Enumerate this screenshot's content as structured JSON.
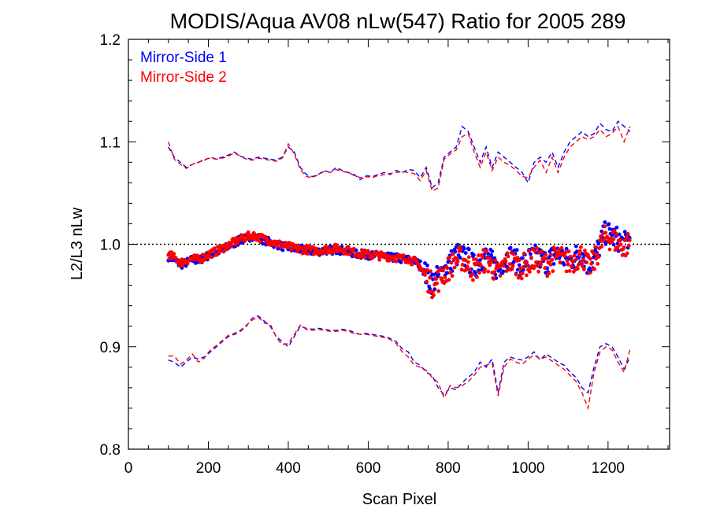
{
  "chart_data": {
    "type": "scatter",
    "title": "MODIS/Aqua AV08 nLw(547) Ratio for 2005 289",
    "xlabel": "Scan Pixel",
    "ylabel": "L2/L3 nLw",
    "xlim": [
      0,
      1354
    ],
    "ylim": [
      0.8,
      1.2
    ],
    "x_ticks": [
      0,
      200,
      400,
      600,
      800,
      1000,
      1200
    ],
    "x_tick_labels": [
      "0",
      "200",
      "400",
      "600",
      "800",
      "1000",
      "1200"
    ],
    "y_ticks": [
      0.8,
      0.9,
      1.0,
      1.1,
      1.2
    ],
    "y_tick_labels": [
      "0.8",
      "0.9",
      "1.0",
      "1.1",
      "1.2"
    ],
    "reference_line": 1.0,
    "legend_position": "top-left",
    "grid": false,
    "series": [
      {
        "name": "Mirror-Side 1",
        "color": "#0000ff",
        "x": [
          100,
          115,
          130,
          145,
          160,
          175,
          190,
          205,
          220,
          235,
          250,
          265,
          280,
          295,
          310,
          325,
          340,
          355,
          370,
          385,
          400,
          415,
          430,
          445,
          460,
          475,
          490,
          505,
          520,
          535,
          550,
          565,
          580,
          595,
          610,
          625,
          640,
          655,
          670,
          685,
          700,
          715,
          730,
          745,
          760,
          775,
          790,
          805,
          820,
          835,
          850,
          865,
          880,
          895,
          910,
          925,
          940,
          955,
          970,
          985,
          1000,
          1015,
          1030,
          1045,
          1060,
          1075,
          1090,
          1105,
          1120,
          1135,
          1150,
          1165,
          1180,
          1195,
          1210,
          1225,
          1240,
          1255
        ],
        "mean": [
          0.988,
          0.985,
          0.98,
          0.982,
          0.985,
          0.984,
          0.987,
          0.99,
          0.992,
          0.995,
          0.998,
          1.001,
          1.004,
          1.006,
          1.008,
          1.006,
          1.004,
          1.002,
          1.0,
          0.998,
          0.997,
          0.995,
          0.995,
          0.994,
          0.993,
          0.993,
          0.994,
          0.994,
          0.995,
          0.994,
          0.993,
          0.991,
          0.99,
          0.99,
          0.989,
          0.989,
          0.988,
          0.987,
          0.987,
          0.985,
          0.985,
          0.984,
          0.98,
          0.97,
          0.963,
          0.968,
          0.975,
          0.982,
          0.99,
          0.988,
          0.985,
          0.978,
          0.985,
          0.988,
          0.982,
          0.975,
          0.985,
          0.988,
          0.983,
          0.98,
          0.985,
          0.988,
          0.986,
          0.983,
          0.987,
          0.99,
          0.986,
          0.984,
          0.989,
          0.992,
          0.98,
          0.985,
          1.0,
          1.012,
          1.008,
          1.005,
          1.0,
          1.005
        ],
        "upper": [
          1.095,
          1.085,
          1.08,
          1.075,
          1.078,
          1.08,
          1.082,
          1.085,
          1.083,
          1.085,
          1.087,
          1.09,
          1.086,
          1.084,
          1.083,
          1.085,
          1.084,
          1.083,
          1.082,
          1.085,
          1.095,
          1.09,
          1.075,
          1.068,
          1.066,
          1.068,
          1.072,
          1.07,
          1.075,
          1.072,
          1.07,
          1.068,
          1.063,
          1.067,
          1.066,
          1.068,
          1.07,
          1.068,
          1.072,
          1.07,
          1.073,
          1.072,
          1.065,
          1.075,
          1.055,
          1.06,
          1.085,
          1.09,
          1.095,
          1.115,
          1.11,
          1.095,
          1.08,
          1.095,
          1.075,
          1.09,
          1.085,
          1.08,
          1.075,
          1.07,
          1.06,
          1.08,
          1.085,
          1.08,
          1.09,
          1.075,
          1.09,
          1.1,
          1.105,
          1.11,
          1.105,
          1.108,
          1.118,
          1.112,
          1.11,
          1.12,
          1.115,
          1.11
        ],
        "lower": [
          0.887,
          0.885,
          0.88,
          0.885,
          0.89,
          0.888,
          0.89,
          0.895,
          0.9,
          0.905,
          0.91,
          0.912,
          0.915,
          0.92,
          0.928,
          0.93,
          0.925,
          0.92,
          0.91,
          0.905,
          0.9,
          0.91,
          0.92,
          0.918,
          0.917,
          0.918,
          0.917,
          0.916,
          0.916,
          0.917,
          0.916,
          0.914,
          0.912,
          0.913,
          0.912,
          0.911,
          0.91,
          0.908,
          0.905,
          0.898,
          0.895,
          0.885,
          0.882,
          0.875,
          0.872,
          0.86,
          0.853,
          0.86,
          0.858,
          0.865,
          0.87,
          0.875,
          0.885,
          0.88,
          0.888,
          0.855,
          0.885,
          0.89,
          0.888,
          0.887,
          0.89,
          0.895,
          0.887,
          0.893,
          0.889,
          0.885,
          0.882,
          0.875,
          0.87,
          0.86,
          0.855,
          0.88,
          0.9,
          0.903,
          0.9,
          0.89,
          0.878,
          0.89
        ]
      },
      {
        "name": "Mirror-Side 2",
        "color": "#ff0000",
        "x": [
          100,
          115,
          130,
          145,
          160,
          175,
          190,
          205,
          220,
          235,
          250,
          265,
          280,
          295,
          310,
          325,
          340,
          355,
          370,
          385,
          400,
          415,
          430,
          445,
          460,
          475,
          490,
          505,
          520,
          535,
          550,
          565,
          580,
          595,
          610,
          625,
          640,
          655,
          670,
          685,
          700,
          715,
          730,
          745,
          760,
          775,
          790,
          805,
          820,
          835,
          850,
          865,
          880,
          895,
          910,
          925,
          940,
          955,
          970,
          985,
          1000,
          1015,
          1030,
          1045,
          1060,
          1075,
          1090,
          1105,
          1120,
          1135,
          1150,
          1165,
          1180,
          1195,
          1210,
          1225,
          1240,
          1255
        ],
        "mean": [
          0.99,
          0.987,
          0.982,
          0.984,
          0.986,
          0.985,
          0.988,
          0.991,
          0.993,
          0.996,
          0.999,
          1.002,
          1.005,
          1.007,
          1.009,
          1.007,
          1.005,
          1.003,
          1.001,
          0.999,
          0.998,
          0.996,
          0.995,
          0.995,
          0.994,
          0.994,
          0.995,
          0.995,
          0.996,
          0.995,
          0.994,
          0.992,
          0.991,
          0.99,
          0.99,
          0.989,
          0.988,
          0.988,
          0.987,
          0.986,
          0.986,
          0.983,
          0.978,
          0.968,
          0.96,
          0.965,
          0.972,
          0.978,
          0.985,
          0.986,
          0.98,
          0.975,
          0.982,
          0.985,
          0.978,
          0.97,
          0.98,
          0.984,
          0.98,
          0.978,
          0.982,
          0.985,
          0.984,
          0.98,
          0.985,
          0.988,
          0.984,
          0.982,
          0.986,
          0.99,
          0.978,
          0.983,
          0.998,
          1.008,
          1.005,
          1.002,
          0.997,
          1.002
        ],
        "upper": [
          1.1,
          1.083,
          1.078,
          1.074,
          1.078,
          1.08,
          1.083,
          1.084,
          1.083,
          1.084,
          1.086,
          1.089,
          1.086,
          1.083,
          1.082,
          1.084,
          1.083,
          1.082,
          1.081,
          1.084,
          1.098,
          1.088,
          1.073,
          1.066,
          1.065,
          1.068,
          1.071,
          1.07,
          1.073,
          1.071,
          1.07,
          1.067,
          1.065,
          1.066,
          1.065,
          1.067,
          1.068,
          1.069,
          1.07,
          1.071,
          1.07,
          1.069,
          1.062,
          1.072,
          1.052,
          1.055,
          1.083,
          1.088,
          1.092,
          1.105,
          1.108,
          1.09,
          1.075,
          1.09,
          1.072,
          1.085,
          1.08,
          1.077,
          1.072,
          1.066,
          1.065,
          1.075,
          1.082,
          1.07,
          1.085,
          1.07,
          1.085,
          1.095,
          1.1,
          1.105,
          1.102,
          1.105,
          1.112,
          1.105,
          1.108,
          1.115,
          1.1,
          1.115
        ],
        "lower": [
          0.891,
          0.891,
          0.883,
          0.887,
          0.893,
          0.885,
          0.889,
          0.897,
          0.901,
          0.906,
          0.911,
          0.913,
          0.916,
          0.921,
          0.926,
          0.929,
          0.923,
          0.922,
          0.909,
          0.902,
          0.903,
          0.912,
          0.921,
          0.917,
          0.916,
          0.917,
          0.916,
          0.915,
          0.915,
          0.916,
          0.915,
          0.913,
          0.912,
          0.912,
          0.911,
          0.91,
          0.909,
          0.907,
          0.903,
          0.895,
          0.89,
          0.882,
          0.88,
          0.877,
          0.87,
          0.865,
          0.85,
          0.862,
          0.86,
          0.862,
          0.866,
          0.872,
          0.88,
          0.882,
          0.884,
          0.852,
          0.88,
          0.888,
          0.885,
          0.883,
          0.888,
          0.892,
          0.888,
          0.89,
          0.886,
          0.882,
          0.878,
          0.872,
          0.866,
          0.855,
          0.84,
          0.875,
          0.895,
          0.9,
          0.897,
          0.885,
          0.875,
          0.898
        ]
      }
    ]
  }
}
